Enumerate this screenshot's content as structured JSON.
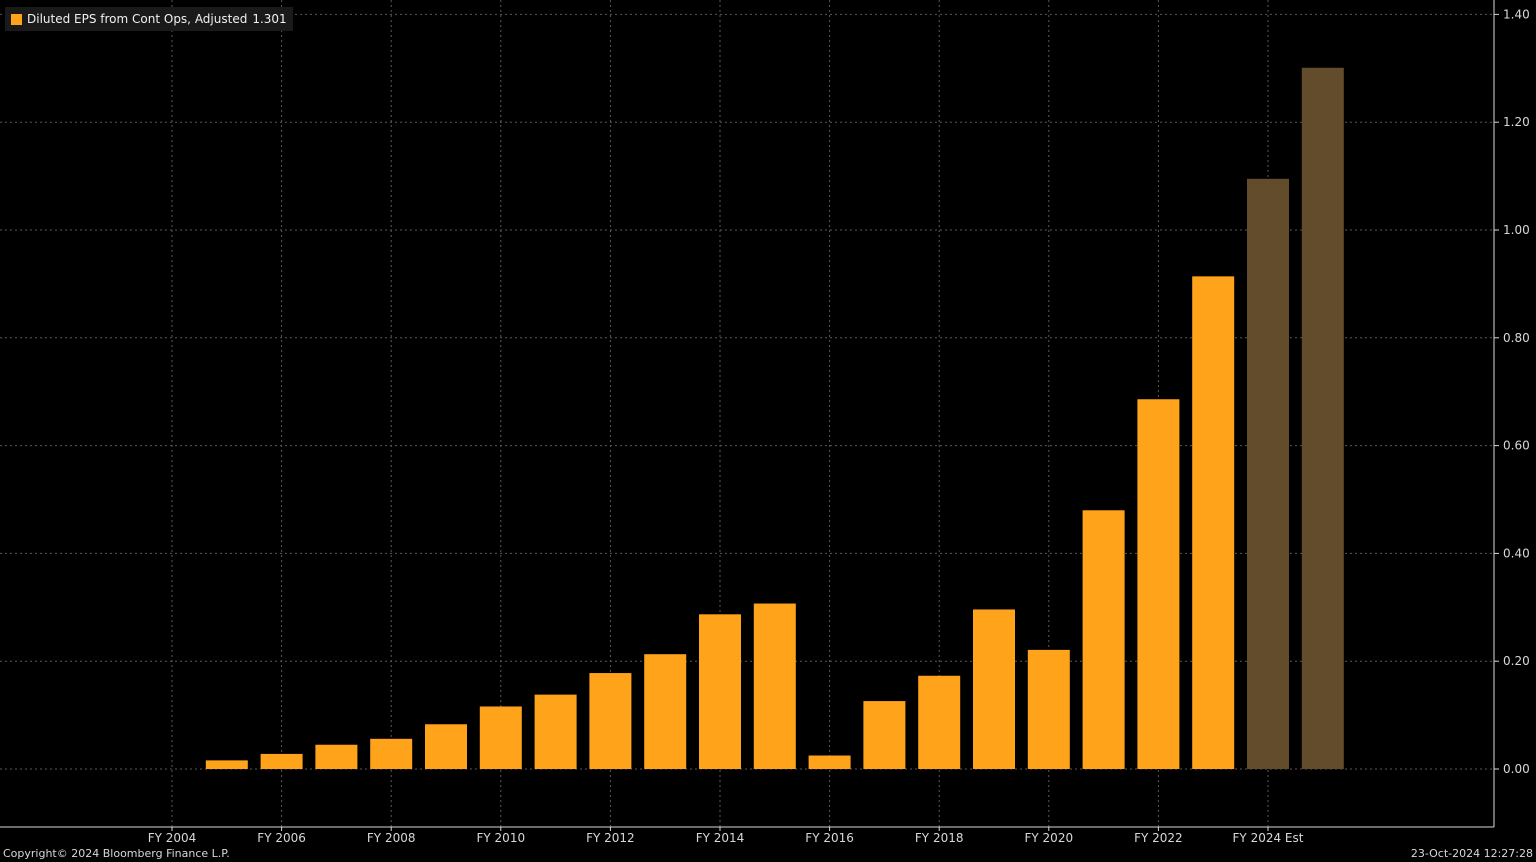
{
  "legend": {
    "label": "Diluted EPS from Cont Ops, Adjusted",
    "value": "1.301"
  },
  "footer": {
    "copyright": "Copyright© 2024 Bloomberg Finance L.P.",
    "timestamp": "23-Oct-2024 12:27:28"
  },
  "colors": {
    "actual": "#ffa31a",
    "estimate": "#634c2c",
    "background": "#000000",
    "grid": "#5a5a5a",
    "axis_text": "#d8d8d8"
  },
  "chart_data": {
    "type": "bar",
    "title": "",
    "xlabel": "",
    "ylabel": "",
    "ylim": [
      -0.11,
      1.41
    ],
    "y_ticks": [
      "1.40",
      "1.20",
      "1.00",
      "0.80",
      "0.60",
      "0.40",
      "0.20",
      "0.00"
    ],
    "y_axis_position": "right",
    "grid": true,
    "legend_position": "top-left",
    "x_tick_labels": [
      "FY 2004",
      "FY 2006",
      "FY 2008",
      "FY 2010",
      "FY 2012",
      "FY 2014",
      "FY 2016",
      "FY 2018",
      "FY 2020",
      "FY 2022",
      "FY 2024 Est"
    ],
    "categories": [
      "FY 2004",
      "FY 2005",
      "FY 2006",
      "FY 2007",
      "FY 2008",
      "FY 2009",
      "FY 2010",
      "FY 2011",
      "FY 2012",
      "FY 2013",
      "FY 2014",
      "FY 2015",
      "FY 2016",
      "FY 2017",
      "FY 2018",
      "FY 2019",
      "FY 2020",
      "FY 2021",
      "FY 2022",
      "FY 2023",
      "FY 2024 Est",
      "FY 2025 Est"
    ],
    "series": [
      {
        "name": "Diluted EPS from Cont Ops, Adjusted",
        "values": [
          null,
          0.016,
          0.028,
          0.045,
          0.056,
          0.083,
          0.116,
          0.138,
          0.178,
          0.213,
          0.287,
          0.307,
          0.025,
          0.126,
          0.173,
          0.296,
          0.221,
          0.48,
          0.686,
          0.914,
          1.05,
          null
        ]
      },
      {
        "name": "Estimate",
        "values": [
          null,
          null,
          null,
          null,
          null,
          null,
          null,
          null,
          null,
          null,
          null,
          null,
          null,
          null,
          null,
          null,
          null,
          null,
          null,
          null,
          1.095,
          1.301
        ]
      }
    ]
  }
}
